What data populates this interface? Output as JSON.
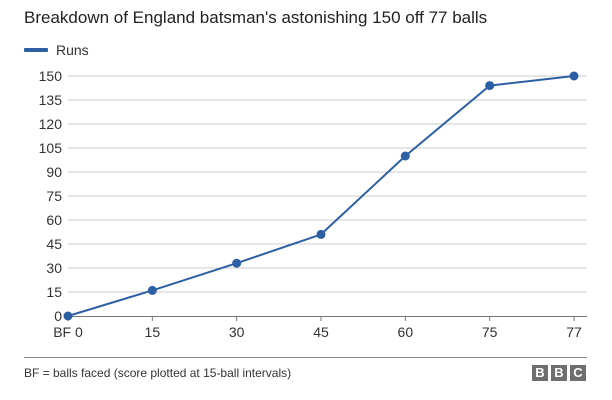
{
  "chart_data": {
    "type": "line",
    "title": "Breakdown of England batsman's astonishing 150 off 77 balls",
    "xlabel": "",
    "ylabel": "",
    "x_tick_labels": [
      "BF 0",
      "15",
      "30",
      "45",
      "60",
      "75",
      "77"
    ],
    "y_ticks": [
      0,
      15,
      30,
      45,
      60,
      75,
      90,
      105,
      120,
      135,
      150
    ],
    "ylim": [
      0,
      150
    ],
    "grid": true,
    "legend_position": "top-left",
    "series": [
      {
        "name": "Runs",
        "x": [
          0,
          15,
          30,
          45,
          60,
          75,
          77
        ],
        "values": [
          0,
          16,
          33,
          51,
          100,
          144,
          150
        ],
        "color": "#2c5fa3"
      }
    ],
    "footnote": "BF = balls faced (score plotted at 15-ball intervals)"
  },
  "brand": {
    "logo_letters": [
      "B",
      "B",
      "C"
    ]
  },
  "colors": {
    "line": "#2c5fa3",
    "grid": "#cccccc",
    "axis": "#777777"
  }
}
